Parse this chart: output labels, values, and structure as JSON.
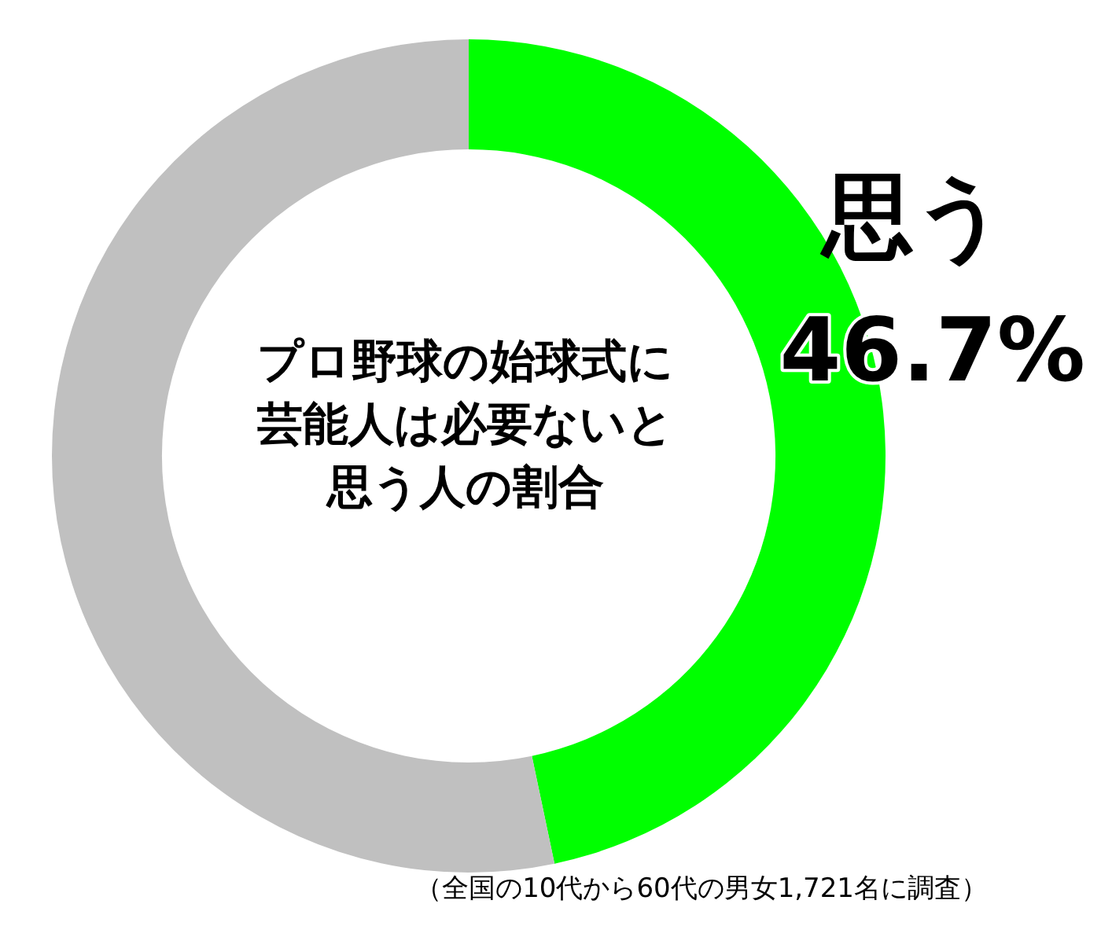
{
  "chart_data": {
    "type": "donut",
    "title": "プロ野球の始球式に芸能人は必要ないと思う人の割合",
    "categories": [
      "思う",
      null
    ],
    "values": [
      46.7,
      53.3
    ],
    "value_labels": [
      "46.7%",
      null
    ],
    "colors": [
      "#00ff00",
      "#c0c0c0"
    ],
    "legend": false,
    "annotations": [
      "（全国の10代から60代の男女1,721名に調査）"
    ]
  }
}
